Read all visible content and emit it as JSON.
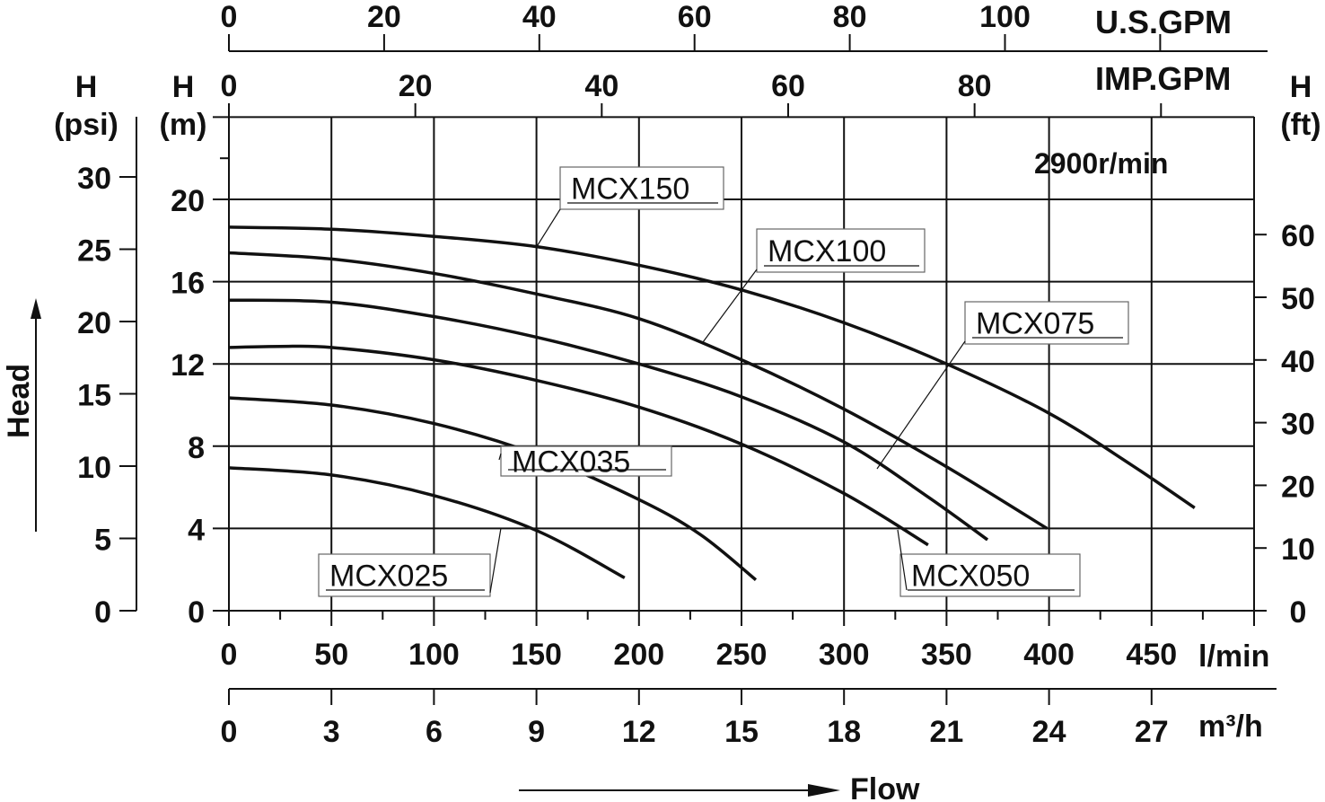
{
  "chart_data": {
    "type": "line",
    "title": "2900r/min",
    "xlabel": "Flow",
    "ylabel": "Head",
    "x_units": "l/min",
    "y_units": "m",
    "xlim": [
      0,
      500
    ],
    "ylim": [
      0,
      24
    ],
    "grid": true,
    "axes": {
      "x_lmin": {
        "label": "l/min",
        "ticks": [
          0,
          50,
          100,
          150,
          200,
          250,
          300,
          350,
          400,
          450
        ]
      },
      "x_m3h": {
        "label": "m³/h",
        "ticks": [
          0,
          3,
          6,
          9,
          12,
          15,
          18,
          21,
          24,
          27
        ]
      },
      "x_usgpm": {
        "label": "U.S.GPM",
        "ticks": [
          0,
          20,
          40,
          60,
          80,
          100
        ]
      },
      "x_impgpm": {
        "label": "IMP.GPM",
        "ticks": [
          0,
          20,
          40,
          60,
          80
        ]
      },
      "y_m": {
        "label_top": "H",
        "label_unit": "(m)",
        "ticks": [
          0,
          4,
          8,
          12,
          16,
          20
        ]
      },
      "y_psi": {
        "label_top": "H",
        "label_unit": "(psi)",
        "ticks": [
          0,
          5,
          10,
          15,
          20,
          25,
          30
        ]
      },
      "y_ft": {
        "label_top": "H",
        "label_unit": "(ft)",
        "ticks": [
          0,
          10,
          20,
          30,
          40,
          50,
          60
        ]
      }
    },
    "series": [
      {
        "name": "MCX150",
        "points": [
          [
            0,
            18.65
          ],
          [
            50,
            18.55
          ],
          [
            100,
            18.2
          ],
          [
            150,
            17.7
          ],
          [
            200,
            16.8
          ],
          [
            250,
            15.6
          ],
          [
            300,
            14.0
          ],
          [
            350,
            12.0
          ],
          [
            400,
            9.6
          ],
          [
            440,
            7.1
          ],
          [
            471,
            5.0
          ]
        ]
      },
      {
        "name": "MCX100",
        "points": [
          [
            0,
            17.4
          ],
          [
            50,
            17.1
          ],
          [
            100,
            16.4
          ],
          [
            150,
            15.4
          ],
          [
            200,
            14.2
          ],
          [
            250,
            12.2
          ],
          [
            300,
            9.8
          ],
          [
            350,
            7.0
          ],
          [
            399,
            4.0
          ]
        ]
      },
      {
        "name": "MCX075",
        "points": [
          [
            0,
            15.1
          ],
          [
            50,
            15.0
          ],
          [
            100,
            14.3
          ],
          [
            150,
            13.3
          ],
          [
            200,
            12.0
          ],
          [
            250,
            10.4
          ],
          [
            300,
            8.2
          ],
          [
            340,
            5.6
          ],
          [
            370,
            3.45
          ]
        ]
      },
      {
        "name": "MCX050",
        "points": [
          [
            0,
            12.8
          ],
          [
            25,
            12.85
          ],
          [
            50,
            12.8
          ],
          [
            100,
            12.2
          ],
          [
            150,
            11.2
          ],
          [
            200,
            9.9
          ],
          [
            250,
            8.1
          ],
          [
            300,
            5.7
          ],
          [
            341,
            3.2
          ]
        ]
      },
      {
        "name": "MCX035",
        "points": [
          [
            0,
            10.35
          ],
          [
            50,
            10.0
          ],
          [
            100,
            9.1
          ],
          [
            150,
            7.6
          ],
          [
            200,
            5.4
          ],
          [
            230,
            3.7
          ],
          [
            257,
            1.5
          ]
        ]
      },
      {
        "name": "MCX025",
        "points": [
          [
            0,
            6.95
          ],
          [
            50,
            6.6
          ],
          [
            100,
            5.6
          ],
          [
            150,
            3.9
          ],
          [
            193,
            1.6
          ]
        ]
      }
    ]
  }
}
